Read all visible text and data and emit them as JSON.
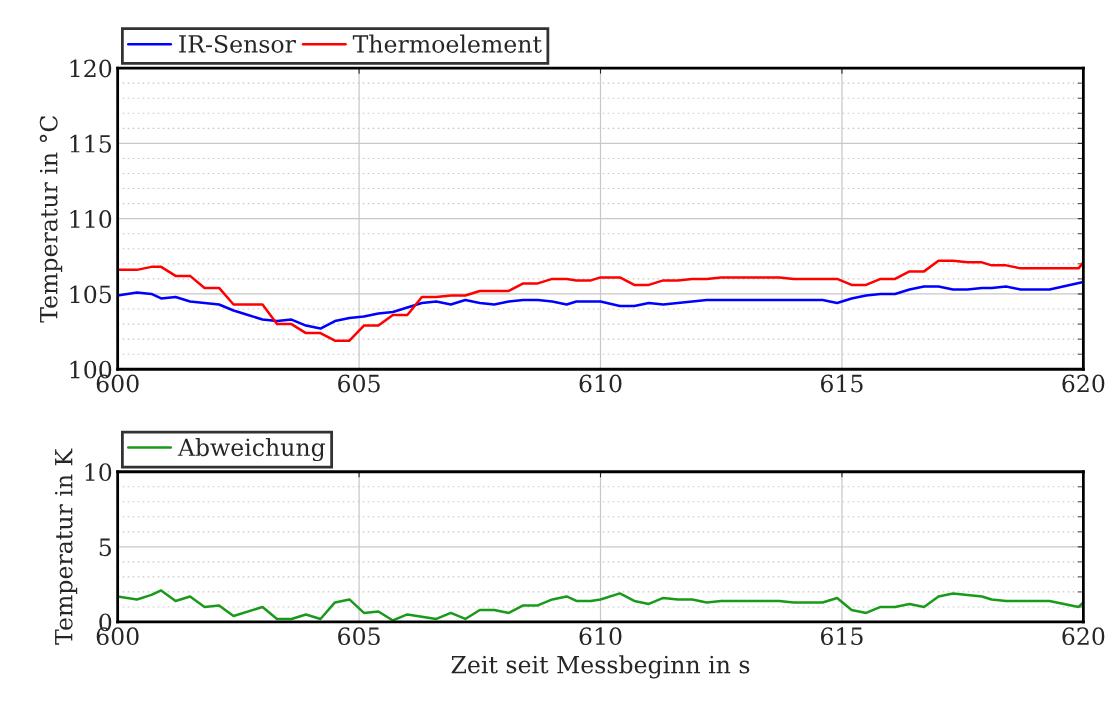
{
  "chart_data": [
    {
      "type": "line",
      "ylabel": "Temperatur in °C",
      "xlim": [
        600,
        620
      ],
      "xticks": [
        600,
        605,
        610,
        615,
        620
      ],
      "ylim": [
        100,
        120
      ],
      "yticks": [
        100,
        105,
        110,
        115,
        120
      ],
      "grid": true,
      "legend": "top left",
      "series": [
        {
          "name": "IR-Sensor",
          "color": "#0000ff",
          "x": [
            600,
            600.4,
            600.7,
            600.9,
            601.2,
            601.5,
            601.8,
            602.1,
            602.4,
            602.7,
            603.0,
            603.3,
            603.6,
            603.9,
            604.2,
            604.5,
            604.8,
            605.1,
            605.4,
            605.7,
            606.0,
            606.3,
            606.6,
            606.9,
            607.2,
            607.5,
            607.8,
            608.1,
            608.4,
            608.7,
            609.0,
            609.3,
            609.5,
            610.0,
            610.4,
            610.7,
            611.0,
            611.3,
            611.6,
            611.9,
            612.2,
            614.6,
            614.9,
            615.2,
            615.5,
            615.8,
            616.1,
            616.4,
            616.7,
            617.0,
            617.3,
            617.6,
            617.9,
            618.1,
            618.4,
            618.7,
            619.3,
            620
          ],
          "values": [
            104.9,
            105.1,
            105.0,
            104.7,
            104.8,
            104.5,
            104.4,
            104.3,
            103.9,
            103.6,
            103.3,
            103.2,
            103.3,
            102.9,
            102.7,
            103.2,
            103.4,
            103.5,
            103.7,
            103.8,
            104.1,
            104.4,
            104.5,
            104.3,
            104.6,
            104.4,
            104.3,
            104.5,
            104.6,
            104.6,
            104.5,
            104.3,
            104.5,
            104.5,
            104.2,
            104.2,
            104.4,
            104.3,
            104.4,
            104.5,
            104.6,
            104.6,
            104.4,
            104.7,
            104.9,
            105.0,
            105.0,
            105.3,
            105.5,
            105.5,
            105.3,
            105.3,
            105.4,
            105.4,
            105.5,
            105.3,
            105.3,
            105.8
          ]
        },
        {
          "name": "Thermoelement",
          "color": "#ff0000",
          "x": [
            600,
            600.4,
            600.7,
            600.9,
            601.2,
            601.5,
            601.8,
            602.1,
            602.4,
            603.0,
            603.3,
            603.6,
            603.9,
            604.2,
            604.5,
            604.8,
            605.1,
            605.4,
            605.7,
            606.0,
            606.3,
            606.6,
            606.9,
            607.2,
            607.5,
            608.1,
            608.4,
            608.7,
            609.0,
            609.3,
            609.5,
            609.8,
            610.0,
            610.4,
            610.7,
            611.0,
            611.3,
            611.6,
            611.9,
            612.2,
            612.5,
            613.7,
            614.0,
            614.9,
            615.2,
            615.5,
            615.8,
            616.1,
            616.4,
            616.7,
            617.0,
            617.3,
            617.6,
            617.9,
            618.1,
            618.4,
            618.7,
            619.9,
            620
          ],
          "values": [
            106.6,
            106.6,
            106.8,
            106.8,
            106.2,
            106.2,
            105.4,
            105.4,
            104.3,
            104.3,
            103.0,
            103.0,
            102.4,
            102.4,
            101.9,
            101.9,
            102.9,
            102.9,
            103.6,
            103.6,
            104.8,
            104.8,
            104.9,
            104.9,
            105.2,
            105.2,
            105.7,
            105.7,
            106.0,
            106.0,
            105.9,
            105.9,
            106.1,
            106.1,
            105.6,
            105.6,
            105.9,
            105.9,
            106.0,
            106.0,
            106.1,
            106.1,
            106.0,
            106.0,
            105.6,
            105.6,
            106.0,
            106.0,
            106.5,
            106.5,
            107.2,
            107.2,
            107.1,
            107.1,
            106.9,
            106.9,
            106.7,
            106.7,
            107.1
          ]
        }
      ]
    },
    {
      "type": "line",
      "xlabel": "Zeit seit Messbeginn in s",
      "ylabel": "Temperatur in K",
      "xlim": [
        600,
        620
      ],
      "xticks": [
        600,
        605,
        610,
        615,
        620
      ],
      "ylim": [
        0,
        10
      ],
      "yticks": [
        0,
        5,
        10
      ],
      "grid": true,
      "legend": "top left",
      "series": [
        {
          "name": "Abweichung",
          "color": "#1a9a1a",
          "x": [
            600,
            600.4,
            600.7,
            600.9,
            601.2,
            601.5,
            601.8,
            602.1,
            602.4,
            603.0,
            603.3,
            603.6,
            603.9,
            604.2,
            604.5,
            604.8,
            605.1,
            605.4,
            605.7,
            606.0,
            606.6,
            606.9,
            607.2,
            607.5,
            607.8,
            608.1,
            608.4,
            608.7,
            609.0,
            609.3,
            609.5,
            609.8,
            610.0,
            610.4,
            610.7,
            611.0,
            611.3,
            611.6,
            611.9,
            612.2,
            612.5,
            613.7,
            614.0,
            614.6,
            614.9,
            615.2,
            615.5,
            615.8,
            616.1,
            616.4,
            616.7,
            617.0,
            617.3,
            617.9,
            618.1,
            618.4,
            619.3,
            619.9,
            620
          ],
          "values": [
            1.7,
            1.5,
            1.8,
            2.1,
            1.4,
            1.7,
            1.0,
            1.1,
            0.4,
            1.0,
            0.2,
            0.2,
            0.5,
            0.2,
            1.3,
            1.5,
            0.6,
            0.7,
            0.1,
            0.5,
            0.2,
            0.6,
            0.2,
            0.8,
            0.8,
            0.6,
            1.1,
            1.1,
            1.5,
            1.7,
            1.4,
            1.4,
            1.5,
            1.9,
            1.4,
            1.2,
            1.6,
            1.5,
            1.5,
            1.3,
            1.4,
            1.4,
            1.3,
            1.3,
            1.6,
            0.8,
            0.6,
            1.0,
            1.0,
            1.2,
            1.0,
            1.7,
            1.9,
            1.7,
            1.5,
            1.4,
            1.4,
            1.0,
            1.3
          ]
        }
      ]
    }
  ]
}
